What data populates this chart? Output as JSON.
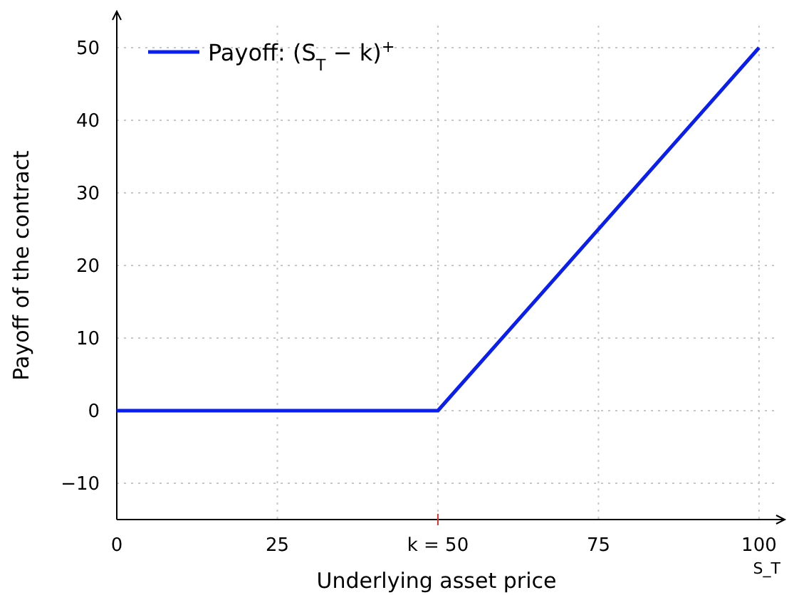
{
  "chart_data": {
    "type": "line",
    "xlabel": "Underlying asset price",
    "ylabel": "Payoff of the contract",
    "x": [
      0,
      50,
      100
    ],
    "series": [
      {
        "name": "Payoff: (S$_{T}$ − k)$^{+}$",
        "color": "#0a1ef0",
        "values": [
          0,
          0,
          50
        ]
      }
    ],
    "xlim": [
      0,
      104
    ],
    "ylim": [
      -15,
      55
    ],
    "xticks": [
      0,
      25,
      {
        "value": 50,
        "label": "k = 50"
      },
      75,
      100
    ],
    "yticks": [
      -10,
      0,
      10,
      20,
      30,
      40,
      50
    ],
    "grid": true,
    "legend": "top left",
    "marker": "none",
    "line_style": "solid",
    "annotations": [
      "S_T"
    ]
  }
}
